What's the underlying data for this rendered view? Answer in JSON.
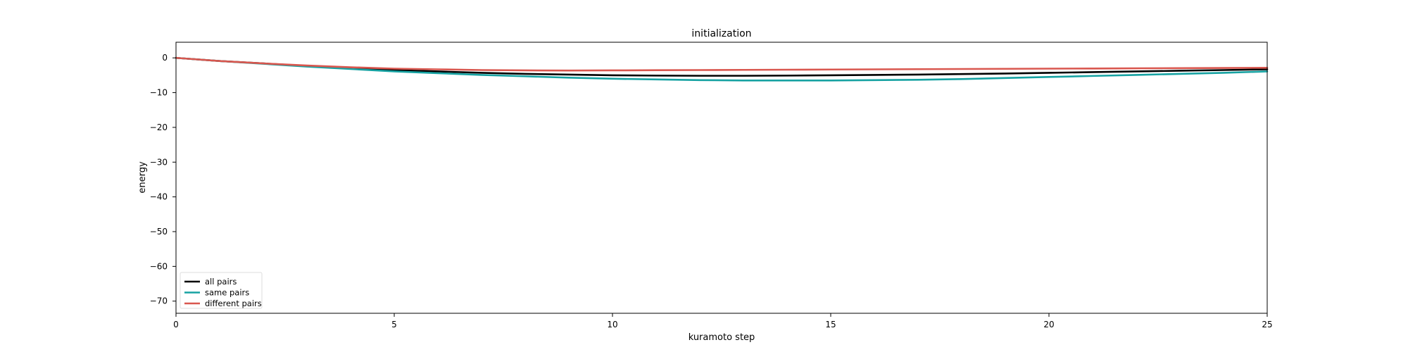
{
  "chart_data": {
    "type": "line",
    "title": "initialization",
    "xlabel": "kuramoto step",
    "ylabel": "energy",
    "xlim": [
      0,
      25
    ],
    "ylim": [
      -73.5,
      4.5
    ],
    "xticks": [
      0,
      5,
      10,
      15,
      20,
      25
    ],
    "yticks": [
      0,
      -10,
      -20,
      -30,
      -40,
      -50,
      -60,
      -70
    ],
    "grid": false,
    "legend_position": "lower-left",
    "x": [
      0,
      1,
      2,
      3,
      4,
      5,
      6,
      7,
      8,
      9,
      10,
      11,
      12,
      13,
      14,
      15,
      16,
      17,
      18,
      19,
      20,
      21,
      22,
      23,
      24,
      25
    ],
    "series": [
      {
        "name": "all pairs",
        "color": "#000000",
        "values": [
          0,
          -0.9,
          -1.6,
          -2.3,
          -3.0,
          -3.5,
          -3.9,
          -4.3,
          -4.6,
          -4.8,
          -5.0,
          -5.1,
          -5.15,
          -5.15,
          -5.1,
          -5.0,
          -4.9,
          -4.8,
          -4.65,
          -4.5,
          -4.3,
          -4.1,
          -3.9,
          -3.7,
          -3.5,
          -3.3
        ]
      },
      {
        "name": "same pairs",
        "color": "#17a2a2",
        "values": [
          0,
          -0.9,
          -1.7,
          -2.5,
          -3.2,
          -3.9,
          -4.4,
          -4.9,
          -5.3,
          -5.7,
          -6.0,
          -6.2,
          -6.4,
          -6.5,
          -6.5,
          -6.5,
          -6.4,
          -6.3,
          -6.1,
          -5.8,
          -5.5,
          -5.2,
          -4.9,
          -4.6,
          -4.3,
          -3.9
        ]
      },
      {
        "name": "different pairs",
        "color": "#d9574f",
        "values": [
          0,
          -0.9,
          -1.6,
          -2.2,
          -2.7,
          -3.1,
          -3.3,
          -3.5,
          -3.6,
          -3.65,
          -3.6,
          -3.55,
          -3.5,
          -3.45,
          -3.4,
          -3.35,
          -3.3,
          -3.25,
          -3.2,
          -3.15,
          -3.1,
          -3.05,
          -3.0,
          -2.95,
          -2.9,
          -2.85
        ]
      }
    ]
  }
}
